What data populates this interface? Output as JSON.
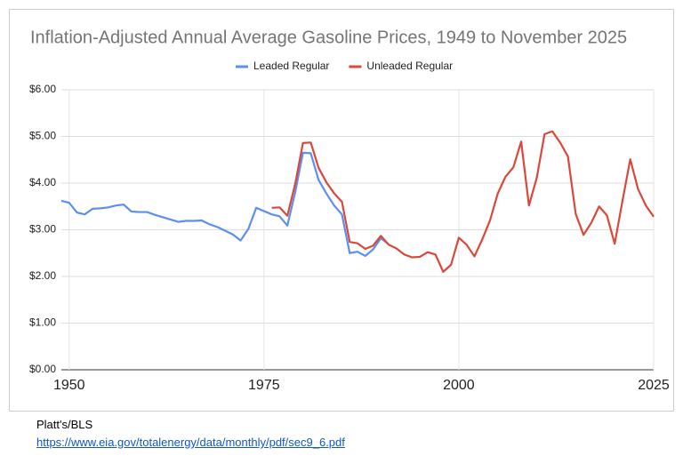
{
  "chart_data": {
    "type": "line",
    "title": "Inflation-Adjusted Annual Average Gasoline Prices, 1949 to November 2025",
    "x": [
      1949,
      1950,
      1951,
      1952,
      1953,
      1954,
      1955,
      1956,
      1957,
      1958,
      1959,
      1960,
      1961,
      1962,
      1963,
      1964,
      1965,
      1966,
      1967,
      1968,
      1969,
      1970,
      1971,
      1972,
      1973,
      1974,
      1975,
      1976,
      1977,
      1978,
      1979,
      1980,
      1981,
      1982,
      1983,
      1984,
      1985,
      1986,
      1987,
      1988,
      1989,
      1990,
      1991,
      1992,
      1993,
      1994,
      1995,
      1996,
      1997,
      1998,
      1999,
      2000,
      2001,
      2002,
      2003,
      2004,
      2005,
      2006,
      2007,
      2008,
      2009,
      2010,
      2011,
      2012,
      2013,
      2014,
      2015,
      2016,
      2017,
      2018,
      2019,
      2020,
      2021,
      2022,
      2023,
      2024,
      2025
    ],
    "series": [
      {
        "name": "Leaded Regular",
        "color": "#5b8ff0",
        "values": [
          3.62,
          3.58,
          3.37,
          3.33,
          3.45,
          3.46,
          3.48,
          3.52,
          3.54,
          3.39,
          3.38,
          3.38,
          3.32,
          3.27,
          3.22,
          3.17,
          3.19,
          3.19,
          3.2,
          3.12,
          3.06,
          2.98,
          2.9,
          2.77,
          3.02,
          3.47,
          3.4,
          3.33,
          3.29,
          3.09,
          3.8,
          4.65,
          4.64,
          4.07,
          3.78,
          3.52,
          3.33,
          2.5,
          2.53,
          2.44,
          2.58,
          2.82,
          2.69,
          null,
          null,
          null,
          null,
          null,
          null,
          null,
          null,
          null,
          null,
          null,
          null,
          null,
          null,
          null,
          null,
          null,
          null,
          null,
          null,
          null,
          null,
          null,
          null,
          null,
          null,
          null,
          null,
          null,
          null,
          null,
          null,
          null,
          null
        ]
      },
      {
        "name": "Unleaded Regular",
        "color": "#d9483b",
        "values": [
          null,
          null,
          null,
          null,
          null,
          null,
          null,
          null,
          null,
          null,
          null,
          null,
          null,
          null,
          null,
          null,
          null,
          null,
          null,
          null,
          null,
          null,
          null,
          null,
          null,
          null,
          null,
          3.47,
          3.48,
          3.3,
          3.98,
          4.86,
          4.87,
          4.33,
          4.02,
          3.78,
          3.6,
          2.74,
          2.71,
          2.59,
          2.66,
          2.87,
          2.68,
          2.6,
          2.47,
          2.41,
          2.42,
          2.52,
          2.47,
          2.1,
          2.25,
          2.83,
          2.68,
          2.43,
          2.79,
          3.2,
          3.78,
          4.14,
          4.34,
          4.89,
          3.52,
          4.11,
          5.05,
          5.11,
          4.87,
          4.57,
          3.34,
          2.89,
          3.15,
          3.5,
          3.31,
          2.7,
          3.62,
          4.51,
          3.87,
          3.52,
          3.28
        ]
      }
    ],
    "xlim": [
      1949,
      2025
    ],
    "xticks": [
      1950,
      1975,
      2000,
      2025
    ],
    "ylim": [
      0,
      6
    ],
    "yticks": [
      {
        "value": 0,
        "label": "$0.00"
      },
      {
        "value": 1,
        "label": "$1.00"
      },
      {
        "value": 2,
        "label": "$2.00"
      },
      {
        "value": 3,
        "label": "$3.00"
      },
      {
        "value": 4,
        "label": "$4.00"
      },
      {
        "value": 5,
        "label": "$5.00"
      },
      {
        "value": 6,
        "label": "$6.00"
      }
    ],
    "grid": true,
    "legend": "top"
  },
  "source": {
    "text": "Platt's/BLS",
    "link": "https://www.eia.gov/totalenergy/data/monthly/pdf/sec9_6.pdf"
  }
}
